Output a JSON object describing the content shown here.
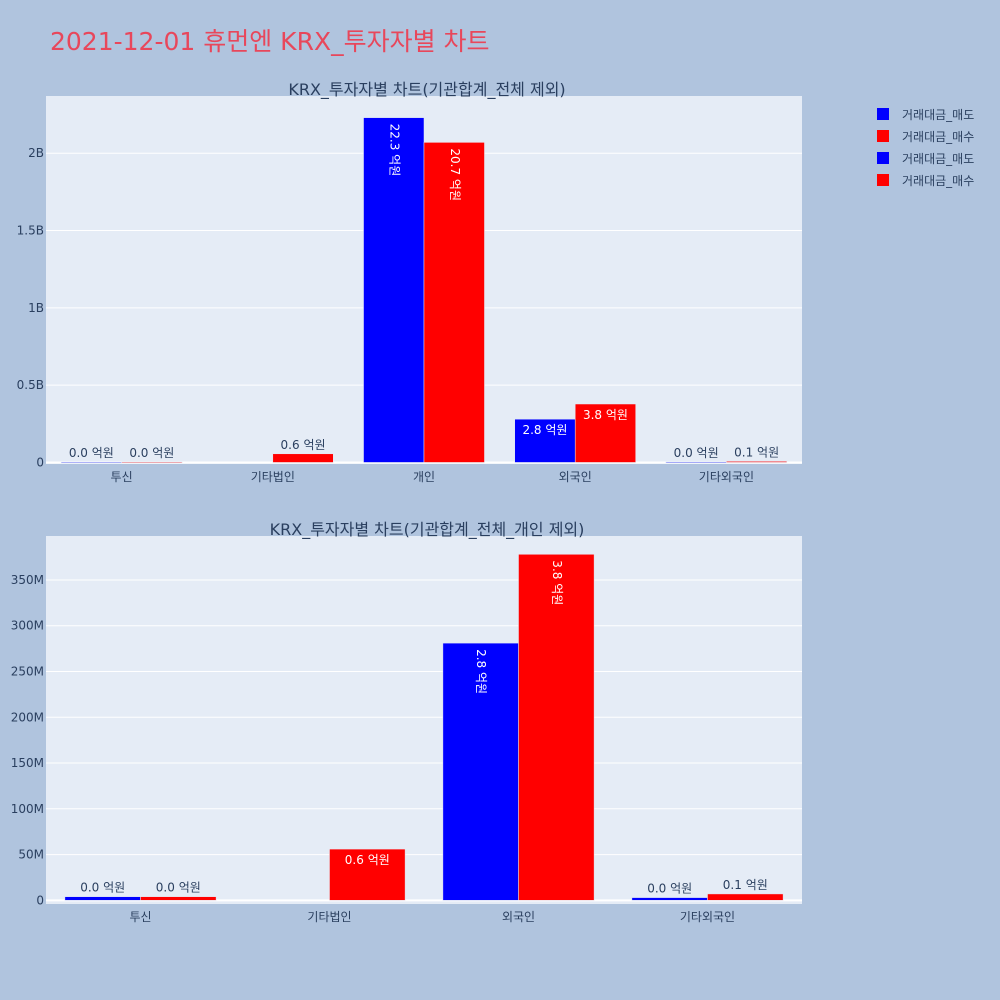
{
  "page": {
    "title": "2021-12-01 휴먼엔 KRX_투자자별 차트"
  },
  "legend": {
    "items": [
      {
        "label": "거래대금_매도",
        "color": "#0000ff"
      },
      {
        "label": "거래대금_매수",
        "color": "#ff0000"
      },
      {
        "label": "거래대금_매도",
        "color": "#0000ff"
      },
      {
        "label": "거래대금_매수",
        "color": "#ff0000"
      }
    ]
  },
  "chart_data": [
    {
      "type": "bar",
      "title": "KRX_투자자별 차트(기관합계_전체 제외)",
      "categories": [
        "투신",
        "기타법인",
        "개인",
        "외국인",
        "기타외국인"
      ],
      "series": [
        {
          "name": "거래대금_매도",
          "color": "#0000ff",
          "values": [
            2000000,
            0,
            2230000000,
            280000000,
            3000000
          ],
          "labels": [
            "0.0 억원",
            "",
            "22.3 억원",
            "2.8 억원",
            "0.0 억원"
          ]
        },
        {
          "name": "거래대금_매수",
          "color": "#ff0000",
          "values": [
            3000000,
            56000000,
            2070000000,
            378000000,
            7000000
          ],
          "labels": [
            "0.0 억원",
            "0.6 억원",
            "20.7 억원",
            "3.8 억원",
            "0.1 억원"
          ]
        }
      ],
      "yticks": [
        0,
        500000000,
        1000000000,
        1500000000,
        2000000000
      ],
      "ytick_labels": [
        "0",
        "0.5B",
        "1B",
        "1.5B",
        "2B"
      ],
      "ylim": [
        -10000000,
        2370000000
      ],
      "grid": true
    },
    {
      "type": "bar",
      "title": "KRX_투자자별 차트(기관합계_전체_개인 제외)",
      "categories": [
        "투신",
        "기타법인",
        "외국인",
        "기타외국인"
      ],
      "series": [
        {
          "name": "거래대금_매도",
          "color": "#0000ff",
          "values": [
            4000000,
            0,
            281000000,
            3000000
          ],
          "labels": [
            "0.0 억원",
            "",
            "2.8 억원",
            "0.0 억원"
          ]
        },
        {
          "name": "거래대금_매수",
          "color": "#ff0000",
          "values": [
            4000000,
            56000000,
            378000000,
            7000000
          ],
          "labels": [
            "0.0 억원",
            "0.6 억원",
            "3.8 억원",
            "0.1 억원"
          ]
        }
      ],
      "yticks": [
        0,
        50000000,
        100000000,
        150000000,
        200000000,
        250000000,
        300000000,
        350000000
      ],
      "ytick_labels": [
        "0",
        "50M",
        "100M",
        "150M",
        "200M",
        "250M",
        "300M",
        "350M"
      ],
      "ylim": [
        -4000000,
        398000000
      ],
      "grid": true
    }
  ]
}
